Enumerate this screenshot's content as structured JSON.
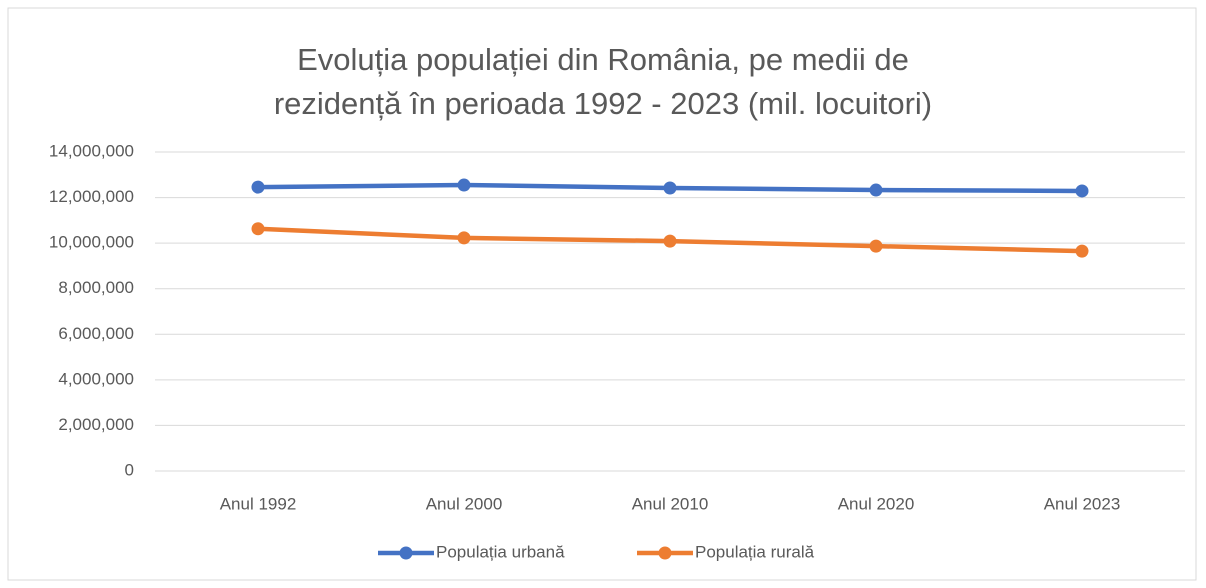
{
  "chart_data": {
    "type": "line",
    "title": "Evoluția populației din România, pe medii de rezidență în perioada 1992 - 2023 (mil. locuitori)",
    "categories": [
      "Anul 1992",
      "Anul 2000",
      "Anul 2010",
      "Anul 2020",
      "Anul 2023"
    ],
    "series": [
      {
        "name": "Populația urbană",
        "color": "#4472c4",
        "values": [
          12460000,
          12550000,
          12420000,
          12330000,
          12290000
        ]
      },
      {
        "name": "Populația rurală",
        "color": "#ed7d31",
        "values": [
          10630000,
          10230000,
          10090000,
          9870000,
          9650000
        ]
      }
    ],
    "ylim": [
      0,
      14000000
    ],
    "yticks": [
      0,
      {
        "value": 2000000,
        "label": "2,000,000"
      },
      {
        "value": 4000000,
        "label": "4,000,000"
      },
      {
        "value": 6000000,
        "label": "6,000,000"
      },
      {
        "value": 8000000,
        "label": "8,000,000"
      },
      {
        "value": 10000000,
        "label": "10,000,000"
      },
      {
        "value": 12000000,
        "label": "12,000,000"
      },
      {
        "value": 14000000,
        "label": "14,000,000"
      }
    ],
    "grid": true,
    "legend": "bottom"
  }
}
